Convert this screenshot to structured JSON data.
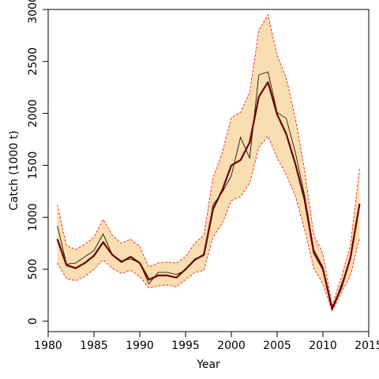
{
  "chart_data": {
    "type": "line",
    "title": "",
    "xlabel": "Year",
    "ylabel": "Catch (1000 t)",
    "xlim": [
      1980,
      2015
    ],
    "ylim": [
      -100,
      3000
    ],
    "x_ticks": [
      1980,
      1985,
      1990,
      1995,
      2000,
      2005,
      2010,
      2015
    ],
    "y_ticks": [
      0,
      500,
      1000,
      1500,
      2000,
      2500,
      3000
    ],
    "grid": false,
    "x": [
      1981,
      1982,
      1983,
      1984,
      1985,
      1986,
      1987,
      1988,
      1989,
      1990,
      1991,
      1992,
      1993,
      1994,
      1995,
      1996,
      1997,
      1998,
      1999,
      2000,
      2001,
      2002,
      2003,
      2004,
      2005,
      2006,
      2007,
      2008,
      2009,
      2010,
      2011,
      2012,
      2013,
      2014
    ],
    "series": [
      {
        "role": "upper",
        "values": [
          1120,
          730,
          690,
          740,
          810,
          980,
          830,
          750,
          790,
          720,
          520,
          560,
          570,
          560,
          620,
          750,
          830,
          1380,
          1620,
          1960,
          2010,
          2200,
          2800,
          2950,
          2560,
          2340,
          1950,
          1450,
          830,
          650,
          150,
          420,
          730,
          1470
        ]
      },
      {
        "role": "lower",
        "values": [
          560,
          410,
          390,
          430,
          500,
          590,
          510,
          460,
          490,
          430,
          320,
          340,
          350,
          330,
          400,
          470,
          490,
          810,
          940,
          1160,
          1200,
          1330,
          1670,
          1780,
          1570,
          1410,
          1200,
          880,
          510,
          360,
          100,
          270,
          440,
          800
        ]
      },
      {
        "role": "observed",
        "values": [
          920,
          550,
          560,
          620,
          680,
          840,
          640,
          580,
          600,
          560,
          360,
          470,
          470,
          450,
          490,
          600,
          630,
          1120,
          1240,
          1400,
          1770,
          1570,
          2370,
          2400,
          2010,
          1950,
          1620,
          1210,
          690,
          520,
          110,
          350,
          600,
          1110
        ]
      },
      {
        "role": "estimate",
        "values": [
          790,
          540,
          510,
          560,
          630,
          760,
          640,
          570,
          620,
          560,
          400,
          440,
          440,
          420,
          500,
          590,
          640,
          1080,
          1260,
          1500,
          1550,
          1720,
          2160,
          2300,
          1990,
          1800,
          1510,
          1170,
          660,
          500,
          120,
          320,
          610,
          1130
        ]
      }
    ],
    "colors": {
      "band_fill": "#f8deb0",
      "band_edge": "#ff0000",
      "estimate": "#6b0000",
      "observed": "#000000",
      "axis": "#000000"
    }
  }
}
